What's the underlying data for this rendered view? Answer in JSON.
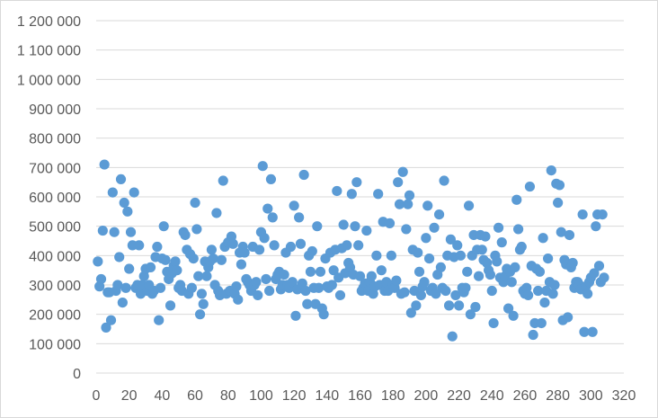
{
  "chart_data": {
    "type": "scatter",
    "title": "",
    "xlabel": "",
    "ylabel": "",
    "xlim": [
      0,
      320
    ],
    "ylim": [
      0,
      1200000
    ],
    "xticks": [
      "0",
      "20",
      "40",
      "60",
      "80",
      "100",
      "120",
      "140",
      "160",
      "180",
      "200",
      "220",
      "240",
      "260",
      "280",
      "300",
      "320"
    ],
    "yticks": [
      "0",
      "100 000",
      "200 000",
      "300 000",
      "400 000",
      "500 000",
      "600 000",
      "700 000",
      "800 000",
      "900 000",
      "1 000 000",
      "1 100 000",
      "1 200 000"
    ],
    "grid": true,
    "legend": "none",
    "marker_color": "#5B9BD5",
    "series": [
      {
        "points": [
          [
            1,
            380000
          ],
          [
            2,
            295000
          ],
          [
            3,
            320000
          ],
          [
            4,
            485000
          ],
          [
            5,
            710000
          ],
          [
            6,
            155000
          ],
          [
            7,
            275000
          ],
          [
            8,
            275000
          ],
          [
            9,
            180000
          ],
          [
            10,
            615000
          ],
          [
            11,
            480000
          ],
          [
            12,
            280000
          ],
          [
            13,
            300000
          ],
          [
            14,
            395000
          ],
          [
            15,
            660000
          ],
          [
            16,
            240000
          ],
          [
            17,
            580000
          ],
          [
            18,
            290000
          ],
          [
            19,
            550000
          ],
          [
            20,
            355000
          ],
          [
            21,
            480000
          ],
          [
            22,
            435000
          ],
          [
            23,
            615000
          ],
          [
            24,
            290000
          ],
          [
            25,
            300000
          ],
          [
            26,
            435000
          ],
          [
            27,
            270000
          ],
          [
            28,
            300000
          ],
          [
            29,
            330000
          ],
          [
            30,
            355000
          ],
          [
            31,
            280000
          ],
          [
            32,
            300000
          ],
          [
            33,
            360000
          ],
          [
            34,
            270000
          ],
          [
            35,
            280000
          ],
          [
            36,
            395000
          ],
          [
            37,
            430000
          ],
          [
            38,
            180000
          ],
          [
            39,
            290000
          ],
          [
            40,
            390000
          ],
          [
            41,
            500000
          ],
          [
            42,
            385000
          ],
          [
            43,
            345000
          ],
          [
            44,
            320000
          ],
          [
            45,
            230000
          ],
          [
            46,
            340000
          ],
          [
            47,
            365000
          ],
          [
            48,
            380000
          ],
          [
            49,
            350000
          ],
          [
            50,
            290000
          ],
          [
            51,
            300000
          ],
          [
            52,
            280000
          ],
          [
            53,
            480000
          ],
          [
            54,
            470000
          ],
          [
            55,
            420000
          ],
          [
            56,
            270000
          ],
          [
            57,
            405000
          ],
          [
            58,
            290000
          ],
          [
            59,
            390000
          ],
          [
            60,
            580000
          ],
          [
            61,
            490000
          ],
          [
            62,
            330000
          ],
          [
            63,
            200000
          ],
          [
            64,
            270000
          ],
          [
            65,
            235000
          ],
          [
            66,
            380000
          ],
          [
            67,
            330000
          ],
          [
            68,
            360000
          ],
          [
            69,
            380000
          ],
          [
            70,
            420000
          ],
          [
            71,
            390000
          ],
          [
            72,
            300000
          ],
          [
            73,
            545000
          ],
          [
            74,
            280000
          ],
          [
            75,
            265000
          ],
          [
            76,
            385000
          ],
          [
            77,
            655000
          ],
          [
            78,
            430000
          ],
          [
            79,
            270000
          ],
          [
            80,
            445000
          ],
          [
            81,
            280000
          ],
          [
            82,
            465000
          ],
          [
            83,
            440000
          ],
          [
            84,
            270000
          ],
          [
            85,
            295000
          ],
          [
            86,
            250000
          ],
          [
            87,
            410000
          ],
          [
            88,
            370000
          ],
          [
            89,
            430000
          ],
          [
            90,
            410000
          ],
          [
            91,
            320000
          ],
          [
            92,
            310000
          ],
          [
            93,
            300000
          ],
          [
            94,
            280000
          ],
          [
            95,
            430000
          ],
          [
            96,
            300000
          ],
          [
            97,
            310000
          ],
          [
            98,
            265000
          ],
          [
            99,
            420000
          ],
          [
            100,
            480000
          ],
          [
            101,
            705000
          ],
          [
            102,
            460000
          ],
          [
            103,
            320000
          ],
          [
            104,
            560000
          ],
          [
            105,
            280000
          ],
          [
            106,
            660000
          ],
          [
            107,
            530000
          ],
          [
            108,
            435000
          ],
          [
            109,
            320000
          ],
          [
            110,
            335000
          ],
          [
            111,
            345000
          ],
          [
            112,
            285000
          ],
          [
            113,
            300000
          ],
          [
            114,
            335000
          ],
          [
            115,
            410000
          ],
          [
            116,
            300000
          ],
          [
            117,
            290000
          ],
          [
            118,
            430000
          ],
          [
            119,
            310000
          ],
          [
            120,
            570000
          ],
          [
            121,
            195000
          ],
          [
            122,
            285000
          ],
          [
            123,
            530000
          ],
          [
            124,
            440000
          ],
          [
            125,
            305000
          ],
          [
            126,
            675000
          ],
          [
            127,
            280000
          ],
          [
            128,
            235000
          ],
          [
            129,
            400000
          ],
          [
            130,
            345000
          ],
          [
            131,
            415000
          ],
          [
            132,
            290000
          ],
          [
            133,
            235000
          ],
          [
            134,
            500000
          ],
          [
            135,
            290000
          ],
          [
            136,
            345000
          ],
          [
            137,
            220000
          ],
          [
            138,
            200000
          ],
          [
            139,
            390000
          ],
          [
            140,
            295000
          ],
          [
            141,
            290000
          ],
          [
            142,
            410000
          ],
          [
            143,
            300000
          ],
          [
            144,
            350000
          ],
          [
            145,
            420000
          ],
          [
            146,
            620000
          ],
          [
            147,
            325000
          ],
          [
            148,
            265000
          ],
          [
            149,
            425000
          ],
          [
            150,
            505000
          ],
          [
            151,
            340000
          ],
          [
            152,
            435000
          ],
          [
            153,
            375000
          ],
          [
            154,
            360000
          ],
          [
            155,
            610000
          ],
          [
            156,
            335000
          ],
          [
            157,
            500000
          ],
          [
            158,
            650000
          ],
          [
            159,
            435000
          ],
          [
            160,
            330000
          ],
          [
            161,
            280000
          ],
          [
            162,
            290000
          ],
          [
            163,
            305000
          ],
          [
            164,
            485000
          ],
          [
            165,
            280000
          ],
          [
            166,
            310000
          ],
          [
            167,
            330000
          ],
          [
            168,
            270000
          ],
          [
            169,
            295000
          ],
          [
            170,
            400000
          ],
          [
            171,
            610000
          ],
          [
            172,
            300000
          ],
          [
            173,
            350000
          ],
          [
            174,
            515000
          ],
          [
            175,
            280000
          ],
          [
            176,
            310000
          ],
          [
            177,
            280000
          ],
          [
            178,
            510000
          ],
          [
            179,
            400000
          ],
          [
            180,
            300000
          ],
          [
            181,
            290000
          ],
          [
            182,
            315000
          ],
          [
            183,
            650000
          ],
          [
            184,
            575000
          ],
          [
            185,
            270000
          ],
          [
            186,
            685000
          ],
          [
            187,
            275000
          ],
          [
            188,
            490000
          ],
          [
            189,
            575000
          ],
          [
            190,
            605000
          ],
          [
            191,
            205000
          ],
          [
            192,
            420000
          ],
          [
            193,
            280000
          ],
          [
            194,
            230000
          ],
          [
            195,
            410000
          ],
          [
            196,
            345000
          ],
          [
            197,
            265000
          ],
          [
            198,
            295000
          ],
          [
            199,
            310000
          ],
          [
            200,
            460000
          ],
          [
            201,
            570000
          ],
          [
            202,
            390000
          ],
          [
            203,
            280000
          ],
          [
            204,
            290000
          ],
          [
            205,
            495000
          ],
          [
            206,
            270000
          ],
          [
            207,
            335000
          ],
          [
            208,
            540000
          ],
          [
            209,
            360000
          ],
          [
            210,
            290000
          ],
          [
            211,
            655000
          ],
          [
            212,
            280000
          ],
          [
            213,
            400000
          ],
          [
            214,
            230000
          ],
          [
            215,
            455000
          ],
          [
            216,
            125000
          ],
          [
            217,
            395000
          ],
          [
            218,
            265000
          ],
          [
            219,
            435000
          ],
          [
            220,
            230000
          ],
          [
            221,
            400000
          ],
          [
            222,
            290000
          ],
          [
            223,
            275000
          ],
          [
            224,
            290000
          ],
          [
            225,
            345000
          ],
          [
            226,
            570000
          ],
          [
            227,
            200000
          ],
          [
            228,
            400000
          ],
          [
            229,
            470000
          ],
          [
            230,
            225000
          ],
          [
            231,
            420000
          ],
          [
            232,
            330000
          ],
          [
            233,
            470000
          ],
          [
            234,
            420000
          ],
          [
            235,
            385000
          ],
          [
            236,
            465000
          ],
          [
            237,
            375000
          ],
          [
            238,
            350000
          ],
          [
            239,
            335000
          ],
          [
            240,
            280000
          ],
          [
            241,
            170000
          ],
          [
            242,
            400000
          ],
          [
            243,
            380000
          ],
          [
            244,
            495000
          ],
          [
            245,
            325000
          ],
          [
            246,
            445000
          ],
          [
            247,
            310000
          ],
          [
            248,
            330000
          ],
          [
            249,
            355000
          ],
          [
            250,
            220000
          ],
          [
            251,
            345000
          ],
          [
            252,
            310000
          ],
          [
            253,
            195000
          ],
          [
            254,
            360000
          ],
          [
            255,
            590000
          ],
          [
            256,
            490000
          ],
          [
            257,
            420000
          ],
          [
            258,
            430000
          ],
          [
            259,
            280000
          ],
          [
            260,
            270000
          ],
          [
            261,
            290000
          ],
          [
            262,
            265000
          ],
          [
            263,
            635000
          ],
          [
            264,
            365000
          ],
          [
            265,
            130000
          ],
          [
            266,
            170000
          ],
          [
            267,
            355000
          ],
          [
            268,
            280000
          ],
          [
            269,
            345000
          ],
          [
            270,
            170000
          ],
          [
            271,
            460000
          ],
          [
            272,
            240000
          ],
          [
            273,
            280000
          ],
          [
            274,
            390000
          ],
          [
            275,
            310000
          ],
          [
            276,
            690000
          ],
          [
            277,
            270000
          ],
          [
            278,
            300000
          ],
          [
            279,
            645000
          ],
          [
            280,
            580000
          ],
          [
            281,
            640000
          ],
          [
            282,
            480000
          ],
          [
            283,
            180000
          ],
          [
            284,
            385000
          ],
          [
            285,
            370000
          ],
          [
            286,
            190000
          ],
          [
            287,
            470000
          ],
          [
            288,
            360000
          ],
          [
            289,
            375000
          ],
          [
            290,
            290000
          ],
          [
            291,
            310000
          ],
          [
            292,
            310000
          ],
          [
            293,
            300000
          ],
          [
            294,
            285000
          ],
          [
            295,
            540000
          ],
          [
            296,
            140000
          ],
          [
            297,
            295000
          ],
          [
            298,
            270000
          ],
          [
            299,
            310000
          ],
          [
            300,
            325000
          ],
          [
            301,
            140000
          ],
          [
            302,
            340000
          ],
          [
            303,
            500000
          ],
          [
            304,
            540000
          ],
          [
            305,
            365000
          ],
          [
            306,
            310000
          ],
          [
            307,
            540000
          ],
          [
            308,
            325000
          ]
        ]
      }
    ]
  }
}
